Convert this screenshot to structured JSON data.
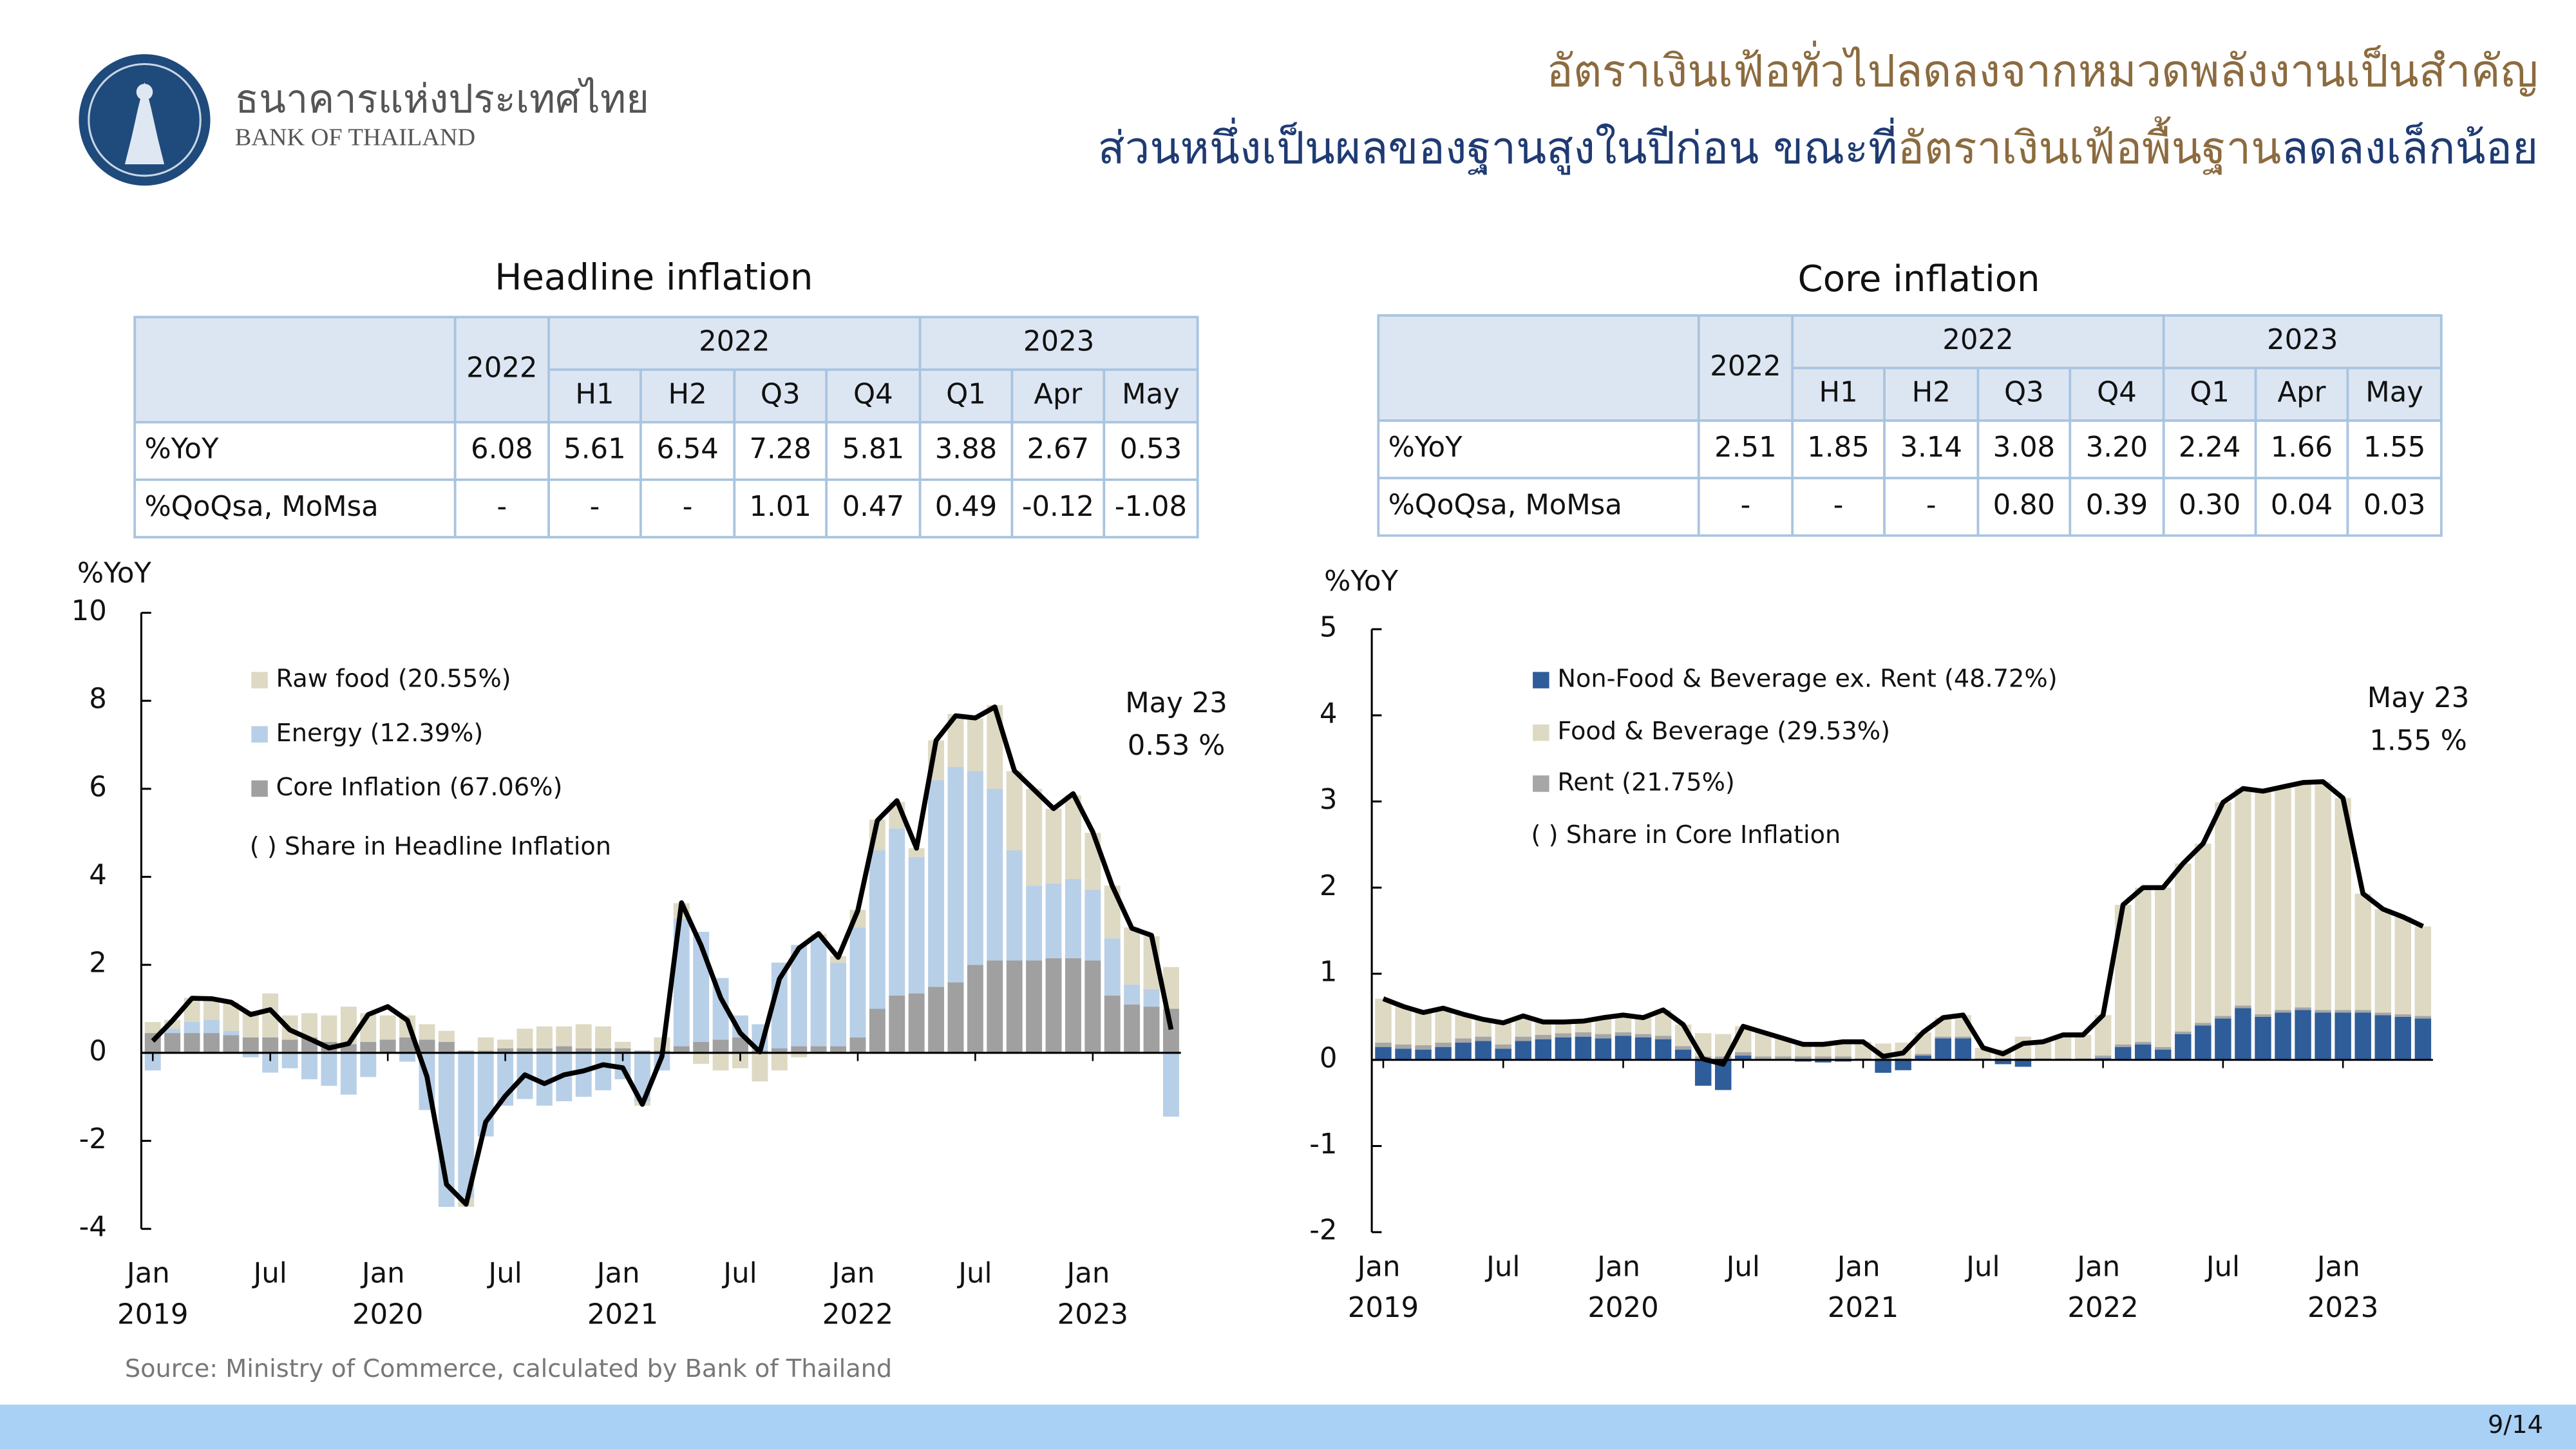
{
  "header": {
    "bank_name_th": "ธนาคารแห่งประเทศไทย",
    "bank_name_en": "BANK OF THAILAND",
    "title_line1": "อัตราเงินเฟ้อทั่วไปลดลงจากหมวดพลังงานเป็นสำคัญ",
    "title_line2": [
      "ส่วนหนึ่งเป็นผลของฐานสูงในปีก่อน ขณะที่",
      "อัตราเงินเฟ้อพื้นฐาน",
      "ลดลงเล็กน้อย"
    ]
  },
  "tables": [
    {
      "year_col": "2022",
      "groups": [
        "2022",
        "2023"
      ],
      "subheaders": [
        "H1",
        "H2",
        "Q3",
        "Q4",
        "Q1",
        "Apr",
        "May"
      ],
      "rows": [
        [
          "%YoY",
          "6.08",
          "5.61",
          "6.54",
          "7.28",
          "5.81",
          "3.88",
          "2.67",
          "0.53"
        ],
        [
          "%QoQsa, MoMsa",
          "-",
          "-",
          "-",
          "1.01",
          "0.47",
          "0.49",
          "-0.12",
          "-1.08"
        ]
      ]
    },
    {
      "year_col": "2022",
      "groups": [
        "2022",
        "2023"
      ],
      "subheaders": [
        "H1",
        "H2",
        "Q3",
        "Q4",
        "Q1",
        "Apr",
        "May"
      ],
      "rows": [
        [
          "%YoY",
          "2.51",
          "1.85",
          "3.14",
          "3.08",
          "3.20",
          "2.24",
          "1.66",
          "1.55"
        ],
        [
          "%QoQsa, MoMsa",
          "-",
          "-",
          "-",
          "0.80",
          "0.39",
          "0.30",
          "0.04",
          "0.03"
        ]
      ]
    }
  ],
  "chart_data": [
    {
      "type": "bar",
      "stacked": true,
      "title": "Headline inflation",
      "ylabel": "%YoY",
      "ylim": [
        -4,
        10
      ],
      "yticks": [
        -4,
        -2,
        0,
        2,
        4,
        6,
        8,
        10
      ],
      "categories": [
        "Jan 2019",
        null,
        null,
        null,
        null,
        null,
        "Jul",
        null,
        null,
        null,
        null,
        null,
        "Jan 2020",
        null,
        null,
        null,
        null,
        null,
        "Jul",
        null,
        null,
        null,
        null,
        null,
        "Jan 2021",
        null,
        null,
        null,
        null,
        null,
        "Jul",
        null,
        null,
        null,
        null,
        null,
        "Jan 2022",
        null,
        null,
        null,
        null,
        null,
        "Jul",
        null,
        null,
        null,
        null,
        null,
        "Jan 2023",
        null,
        null,
        null,
        null
      ],
      "series": [
        {
          "name": "Core Inflation (67.06%)",
          "color": "#a0a0a0",
          "values": [
            0.45,
            0.45,
            0.45,
            0.45,
            0.4,
            0.35,
            0.35,
            0.3,
            0.35,
            0.25,
            0.2,
            0.25,
            0.3,
            0.35,
            0.3,
            0.25,
            0.05,
            0.05,
            0.1,
            0.1,
            0.1,
            0.15,
            0.1,
            0.1,
            0.1,
            0.05,
            0.05,
            0.15,
            0.25,
            0.3,
            0.35,
            0.05,
            0.1,
            0.15,
            0.15,
            0.15,
            0.35,
            1.0,
            1.3,
            1.35,
            1.5,
            1.6,
            2.0,
            2.1,
            2.1,
            2.1,
            2.15,
            2.15,
            2.1,
            1.3,
            1.1,
            1.05,
            1.0
          ]
        },
        {
          "name": "Energy (12.39%)",
          "color": "#b8cfe8",
          "values": [
            -0.4,
            0.1,
            0.25,
            0.3,
            0.1,
            -0.1,
            -0.45,
            -0.35,
            -0.6,
            -0.75,
            -0.95,
            -0.55,
            0.0,
            -0.2,
            -1.3,
            -3.5,
            -3.3,
            -1.9,
            -1.2,
            -1.05,
            -1.2,
            -1.1,
            -1.0,
            -0.85,
            -0.6,
            -1.1,
            -0.4,
            2.9,
            2.5,
            1.4,
            0.5,
            0.6,
            1.95,
            2.3,
            2.45,
            1.9,
            2.5,
            3.6,
            3.8,
            3.1,
            4.7,
            4.9,
            4.4,
            3.9,
            2.5,
            1.7,
            1.7,
            1.8,
            1.6,
            1.3,
            0.45,
            0.4,
            -1.45
          ]
        },
        {
          "name": "Raw food (20.55%)",
          "color": "#ddd9c3",
          "values": [
            0.25,
            0.2,
            0.55,
            0.5,
            0.65,
            0.6,
            1.0,
            0.55,
            0.55,
            0.6,
            0.85,
            0.65,
            0.55,
            0.5,
            0.35,
            0.25,
            -0.2,
            0.3,
            0.2,
            0.45,
            0.5,
            0.45,
            0.55,
            0.5,
            0.15,
            -0.1,
            0.3,
            0.35,
            -0.25,
            -0.4,
            -0.35,
            -0.65,
            -0.4,
            -0.1,
            0.1,
            0.15,
            0.4,
            0.7,
            0.6,
            0.2,
            0.9,
            1.2,
            1.2,
            1.9,
            1.8,
            2.2,
            1.7,
            1.9,
            1.3,
            1.2,
            1.3,
            1.2,
            0.95
          ]
        }
      ],
      "legend_order": [
        2,
        1,
        0
      ],
      "line": {
        "color": "#000000",
        "values": [
          0.27,
          0.73,
          1.24,
          1.23,
          1.15,
          0.87,
          0.98,
          0.52,
          0.32,
          0.11,
          0.21,
          0.87,
          1.05,
          0.74,
          -0.54,
          -2.99,
          -3.44,
          -1.57,
          -0.98,
          -0.5,
          -0.7,
          -0.5,
          -0.41,
          -0.27,
          -0.34,
          -1.17,
          -0.08,
          3.41,
          2.44,
          1.25,
          0.45,
          0.02,
          1.68,
          2.38,
          2.71,
          2.17,
          3.23,
          5.28,
          5.73,
          4.65,
          7.1,
          7.66,
          7.61,
          7.86,
          6.41,
          5.98,
          5.55,
          5.89,
          5.02,
          3.79,
          2.83,
          2.67,
          0.53
        ]
      },
      "legend_note": "( ) Share in Headline Inflation",
      "annotation": [
        "May 23",
        "0.53 %"
      ]
    },
    {
      "type": "bar",
      "stacked": true,
      "title": "Core inflation",
      "ylabel": "%YoY",
      "ylim": [
        -2,
        5
      ],
      "yticks": [
        -2,
        -1,
        0,
        1,
        2,
        3,
        4,
        5
      ],
      "categories": [
        "Jan 2019",
        null,
        null,
        null,
        null,
        null,
        "Jul",
        null,
        null,
        null,
        null,
        null,
        "Jan 2020",
        null,
        null,
        null,
        null,
        null,
        "Jul",
        null,
        null,
        null,
        null,
        null,
        "Jan 2021",
        null,
        null,
        null,
        null,
        null,
        "Jul",
        null,
        null,
        null,
        null,
        null,
        "Jan 2022",
        null,
        null,
        null,
        null,
        null,
        "Jul",
        null,
        null,
        null,
        null,
        null,
        "Jan 2023",
        null,
        null,
        null,
        null
      ],
      "series": [
        {
          "name": "Non-Food & Beverage ex. Rent (48.72%)",
          "color": "#2e5d9a",
          "values": [
            0.15,
            0.13,
            0.12,
            0.15,
            0.2,
            0.22,
            0.13,
            0.22,
            0.24,
            0.26,
            0.27,
            0.25,
            0.28,
            0.26,
            0.24,
            0.12,
            -0.3,
            -0.35,
            0.05,
            0.0,
            0.0,
            -0.02,
            -0.03,
            -0.02,
            0.0,
            -0.15,
            -0.12,
            0.05,
            0.25,
            0.25,
            0.0,
            -0.05,
            -0.08,
            0.0,
            0.0,
            0.0,
            0.02,
            0.15,
            0.18,
            0.12,
            0.3,
            0.4,
            0.48,
            0.6,
            0.5,
            0.55,
            0.58,
            0.55,
            0.55,
            0.55,
            0.52,
            0.5,
            0.48
          ]
        },
        {
          "name": "Rent (21.75%)",
          "color": "#a6a6a6",
          "values": [
            0.05,
            0.05,
            0.05,
            0.05,
            0.05,
            0.05,
            0.05,
            0.05,
            0.05,
            0.05,
            0.05,
            0.05,
            0.04,
            0.04,
            0.04,
            0.04,
            0.04,
            0.04,
            0.04,
            0.04,
            0.04,
            0.04,
            0.04,
            0.04,
            0.02,
            0.02,
            0.02,
            0.02,
            0.02,
            0.02,
            0.02,
            0.02,
            0.02,
            0.02,
            0.02,
            0.02,
            0.03,
            0.03,
            0.03,
            0.03,
            0.03,
            0.03,
            0.03,
            0.03,
            0.03,
            0.03,
            0.03,
            0.03,
            0.03,
            0.03,
            0.03,
            0.03,
            0.03
          ]
        },
        {
          "name": "Food & Beverage (29.53%)",
          "color": "#ddd9c3",
          "values": [
            0.51,
            0.44,
            0.38,
            0.4,
            0.28,
            0.2,
            0.25,
            0.24,
            0.15,
            0.13,
            0.13,
            0.19,
            0.2,
            0.19,
            0.3,
            0.25,
            0.27,
            0.26,
            0.3,
            0.28,
            0.21,
            0.16,
            0.17,
            0.19,
            0.19,
            0.17,
            0.18,
            0.25,
            0.22,
            0.25,
            0.12,
            0.1,
            0.25,
            0.19,
            0.27,
            0.27,
            0.47,
            1.62,
            1.79,
            1.85,
            1.95,
            2.08,
            2.48,
            2.52,
            2.59,
            2.59,
            2.61,
            2.65,
            2.46,
            1.35,
            1.2,
            1.13,
            1.04
          ]
        }
      ],
      "legend_order": [
        0,
        2,
        1
      ],
      "line": {
        "color": "#000000",
        "values": [
          0.71,
          0.62,
          0.55,
          0.6,
          0.53,
          0.47,
          0.43,
          0.51,
          0.44,
          0.44,
          0.45,
          0.49,
          0.52,
          0.49,
          0.58,
          0.41,
          0.01,
          -0.05,
          0.39,
          0.32,
          0.25,
          0.18,
          0.18,
          0.21,
          0.21,
          0.04,
          0.08,
          0.32,
          0.49,
          0.52,
          0.14,
          0.07,
          0.19,
          0.21,
          0.29,
          0.29,
          0.52,
          1.8,
          2.0,
          2.0,
          2.28,
          2.51,
          2.99,
          3.15,
          3.12,
          3.17,
          3.22,
          3.23,
          3.04,
          1.93,
          1.75,
          1.66,
          1.55
        ]
      },
      "legend_note": "( ) Share in Core Inflation",
      "annotation": [
        "May 23",
        "1.55 %"
      ]
    }
  ],
  "source": "Source: Ministry of Commerce, calculated by Bank of Thailand",
  "page_number": "9/14"
}
